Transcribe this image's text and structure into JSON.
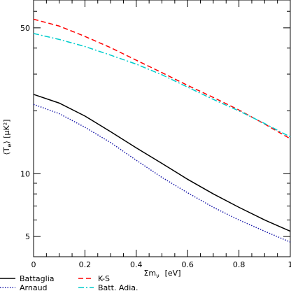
{
  "chart_data": {
    "type": "line",
    "xlabel": "Σm_ν  [eV]",
    "ylabel": "⟨T_e⟩ [μK²]",
    "y_scale": "log",
    "xlim": [
      0,
      1
    ],
    "ylim": [
      4.0,
      68
    ],
    "x_ticks": [
      0,
      0.2,
      0.4,
      0.6,
      0.8,
      1
    ],
    "x_tick_labels": [
      "0",
      "0.2",
      "0.4",
      "0.6",
      "0.8",
      "1"
    ],
    "y_ticks": [
      5,
      10,
      50
    ],
    "y_tick_labels": [
      "5",
      "10",
      "50"
    ],
    "legend_position": "bottom",
    "series": [
      {
        "name": "Battaglia",
        "color": "#000000",
        "dash": "solid",
        "x": [
          0,
          0.1,
          0.2,
          0.3,
          0.4,
          0.5,
          0.6,
          0.7,
          0.8,
          0.9,
          1.0
        ],
        "y": [
          24.0,
          21.8,
          18.9,
          15.9,
          13.3,
          11.2,
          9.4,
          8.0,
          6.9,
          6.0,
          5.3
        ]
      },
      {
        "name": "Arnaud",
        "color": "#1a1aaa",
        "dash": "dotted",
        "x": [
          0,
          0.1,
          0.2,
          0.3,
          0.4,
          0.5,
          0.6,
          0.7,
          0.8,
          0.9,
          1.0
        ],
        "y": [
          21.5,
          19.4,
          16.7,
          14.1,
          11.6,
          9.6,
          8.1,
          6.9,
          6.0,
          5.3,
          4.7
        ]
      },
      {
        "name": "K-S",
        "color": "#ff0000",
        "dash": "dashed",
        "x": [
          0,
          0.1,
          0.2,
          0.3,
          0.4,
          0.5,
          0.6,
          0.7,
          0.8,
          0.9,
          1.0
        ],
        "y": [
          55.0,
          51.0,
          45.5,
          40.2,
          35.0,
          30.5,
          26.5,
          23.2,
          20.2,
          17.3,
          14.7
        ]
      },
      {
        "name": "Batt. Adia.",
        "color": "#00cccc",
        "dash": "dashdot",
        "x": [
          0,
          0.1,
          0.2,
          0.3,
          0.4,
          0.5,
          0.6,
          0.7,
          0.8,
          0.9,
          1.0
        ],
        "y": [
          47.0,
          44.0,
          40.7,
          37.0,
          33.5,
          29.8,
          26.0,
          22.7,
          20.0,
          17.4,
          15.0
        ]
      }
    ]
  },
  "text": {
    "xlabel_main": "Σm",
    "xlabel_sub": "ν",
    "xlabel_unit": "[eV]",
    "ylabel_open": "⟨T",
    "ylabel_sub": "e",
    "ylabel_close": "⟩  [μK²]"
  }
}
